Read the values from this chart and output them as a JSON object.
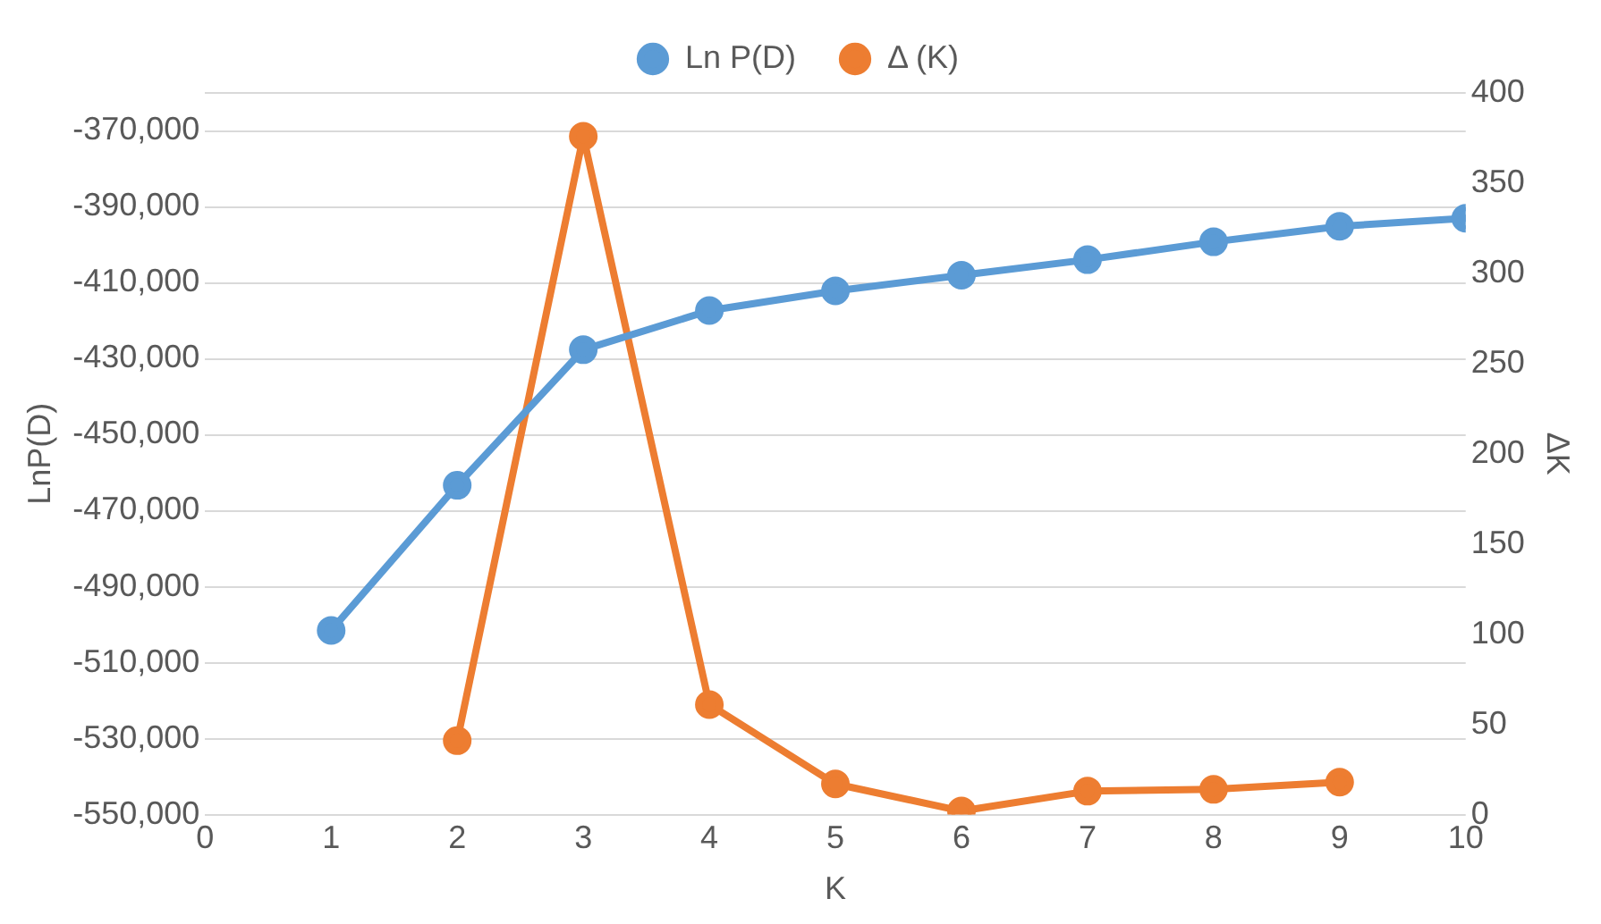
{
  "chart_data": {
    "type": "line",
    "xlabel": "K",
    "ylabel": "LnP(D)",
    "y2label": "ΔK",
    "x": [
      1,
      2,
      3,
      4,
      5,
      6,
      7,
      8,
      9,
      10
    ],
    "series": [
      {
        "name": "Ln P(D)",
        "color": "#5b9bd5",
        "values": [
          -501500,
          -463300,
          -427600,
          -417300,
          -412100,
          -408000,
          -403900,
          -399200,
          -395100,
          -393000
        ]
      },
      {
        "name": "Δ (K)",
        "color": "#ed7d31",
        "axis": "y2",
        "values": [
          null,
          41,
          376,
          61,
          17,
          2,
          13,
          14,
          18,
          null
        ]
      }
    ],
    "xlim": [
      0,
      10
    ],
    "xticks": [
      0,
      1,
      2,
      3,
      4,
      5,
      6,
      7,
      8,
      9,
      10
    ],
    "ylim": [
      -550000,
      -360000
    ],
    "yticks": [
      {
        "value": -550000,
        "label": "-550,000"
      },
      {
        "value": -530000,
        "label": "-530,000"
      },
      {
        "value": -510000,
        "label": "-510,000"
      },
      {
        "value": -490000,
        "label": "-490,000"
      },
      {
        "value": -470000,
        "label": "-470,000"
      },
      {
        "value": -450000,
        "label": "-450,000"
      },
      {
        "value": -430000,
        "label": "-430,000"
      },
      {
        "value": -410000,
        "label": "-410,000"
      },
      {
        "value": -390000,
        "label": "-390,000"
      },
      {
        "value": -370000,
        "label": "-370,000"
      },
      {
        "value": -360000,
        "label": null
      }
    ],
    "y2lim": [
      0,
      400
    ],
    "y2ticks": [
      0,
      50,
      100,
      150,
      200,
      250,
      300,
      350,
      400
    ],
    "grid": "y",
    "legend": "top",
    "marker": "circle",
    "line_style": "solid"
  }
}
